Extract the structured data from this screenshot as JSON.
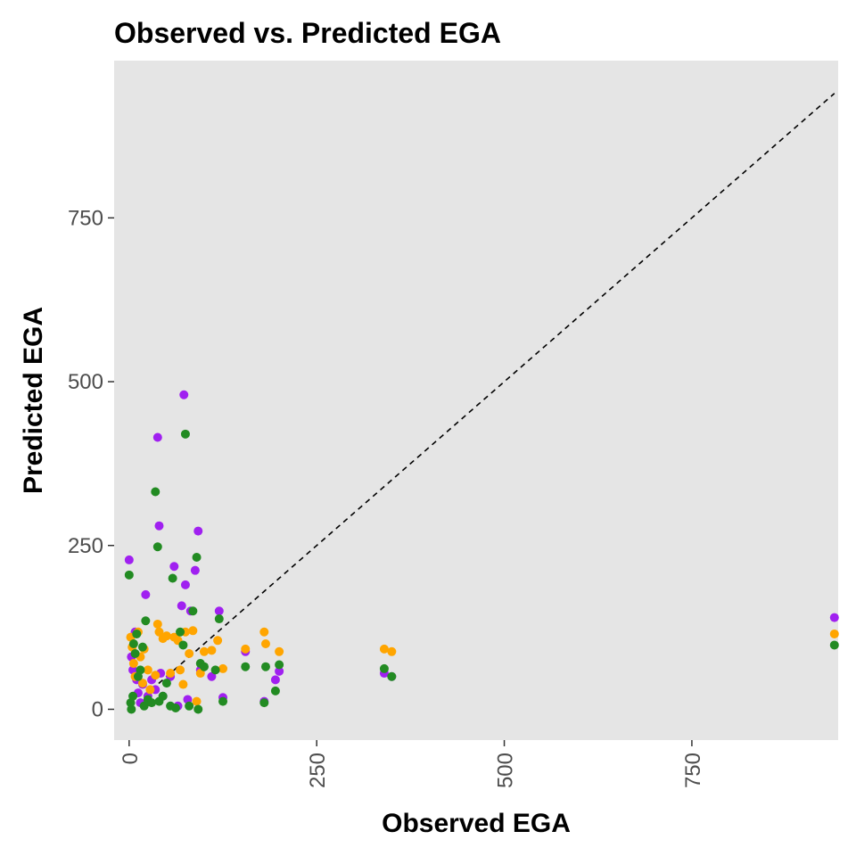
{
  "chart_data": {
    "type": "scatter",
    "title": "Observed vs. Predicted EGA",
    "xlabel": "Observed EGA",
    "ylabel": "Predicted EGA",
    "xlim": [
      -20,
      945
    ],
    "ylim": [
      -47,
      990
    ],
    "xticks": [
      0,
      250,
      500,
      750
    ],
    "xtick_labels": [
      "0",
      "250",
      "500",
      "750"
    ],
    "yticks": [
      0,
      250,
      500,
      750
    ],
    "ytick_labels": [
      "0",
      "250",
      "500",
      "750"
    ],
    "grid": false,
    "legend": "none",
    "panel_background": "#e5e5e5",
    "reference_line": {
      "style": "dashed",
      "color": "#000000",
      "from": [
        0,
        0
      ],
      "to": [
        940,
        940
      ]
    },
    "series": [
      {
        "color": "#a020f0",
        "points": [
          [
            0,
            228
          ],
          [
            3,
            80
          ],
          [
            5,
            60
          ],
          [
            8,
            118
          ],
          [
            10,
            45
          ],
          [
            12,
            25
          ],
          [
            15,
            10
          ],
          [
            18,
            38
          ],
          [
            22,
            175
          ],
          [
            25,
            20
          ],
          [
            30,
            45
          ],
          [
            35,
            30
          ],
          [
            38,
            415
          ],
          [
            40,
            280
          ],
          [
            42,
            55
          ],
          [
            45,
            20
          ],
          [
            55,
            50
          ],
          [
            60,
            218
          ],
          [
            65,
            5
          ],
          [
            70,
            158
          ],
          [
            73,
            480
          ],
          [
            75,
            190
          ],
          [
            78,
            15
          ],
          [
            82,
            150
          ],
          [
            88,
            212
          ],
          [
            92,
            272
          ],
          [
            95,
            60
          ],
          [
            110,
            50
          ],
          [
            120,
            150
          ],
          [
            125,
            18
          ],
          [
            155,
            88
          ],
          [
            180,
            12
          ],
          [
            195,
            45
          ],
          [
            200,
            58
          ],
          [
            340,
            55
          ],
          [
            350,
            50
          ],
          [
            940,
            140
          ]
        ]
      },
      {
        "color": "#ffa500",
        "points": [
          [
            2,
            110
          ],
          [
            4,
            95
          ],
          [
            6,
            70
          ],
          [
            8,
            50
          ],
          [
            12,
            118
          ],
          [
            15,
            80
          ],
          [
            18,
            40
          ],
          [
            20,
            92
          ],
          [
            25,
            60
          ],
          [
            28,
            30
          ],
          [
            35,
            52
          ],
          [
            38,
            130
          ],
          [
            40,
            118
          ],
          [
            45,
            108
          ],
          [
            50,
            112
          ],
          [
            55,
            55
          ],
          [
            60,
            110
          ],
          [
            65,
            105
          ],
          [
            68,
            60
          ],
          [
            72,
            38
          ],
          [
            75,
            118
          ],
          [
            80,
            85
          ],
          [
            85,
            120
          ],
          [
            90,
            12
          ],
          [
            95,
            55
          ],
          [
            100,
            88
          ],
          [
            110,
            90
          ],
          [
            118,
            105
          ],
          [
            125,
            62
          ],
          [
            155,
            92
          ],
          [
            180,
            118
          ],
          [
            182,
            100
          ],
          [
            200,
            88
          ],
          [
            340,
            92
          ],
          [
            350,
            88
          ],
          [
            940,
            115
          ]
        ]
      },
      {
        "color": "#228b22",
        "points": [
          [
            0,
            205
          ],
          [
            2,
            10
          ],
          [
            3,
            0
          ],
          [
            5,
            20
          ],
          [
            6,
            100
          ],
          [
            8,
            85
          ],
          [
            10,
            115
          ],
          [
            12,
            50
          ],
          [
            15,
            60
          ],
          [
            18,
            95
          ],
          [
            20,
            5
          ],
          [
            22,
            135
          ],
          [
            25,
            15
          ],
          [
            30,
            10
          ],
          [
            35,
            332
          ],
          [
            38,
            248
          ],
          [
            40,
            12
          ],
          [
            45,
            20
          ],
          [
            50,
            40
          ],
          [
            55,
            5
          ],
          [
            58,
            200
          ],
          [
            62,
            2
          ],
          [
            68,
            118
          ],
          [
            72,
            98
          ],
          [
            75,
            420
          ],
          [
            80,
            5
          ],
          [
            85,
            150
          ],
          [
            90,
            232
          ],
          [
            92,
            0
          ],
          [
            95,
            70
          ],
          [
            100,
            65
          ],
          [
            115,
            60
          ],
          [
            120,
            138
          ],
          [
            125,
            12
          ],
          [
            155,
            65
          ],
          [
            180,
            10
          ],
          [
            182,
            65
          ],
          [
            195,
            28
          ],
          [
            200,
            68
          ],
          [
            340,
            62
          ],
          [
            350,
            50
          ],
          [
            940,
            98
          ]
        ]
      }
    ]
  }
}
